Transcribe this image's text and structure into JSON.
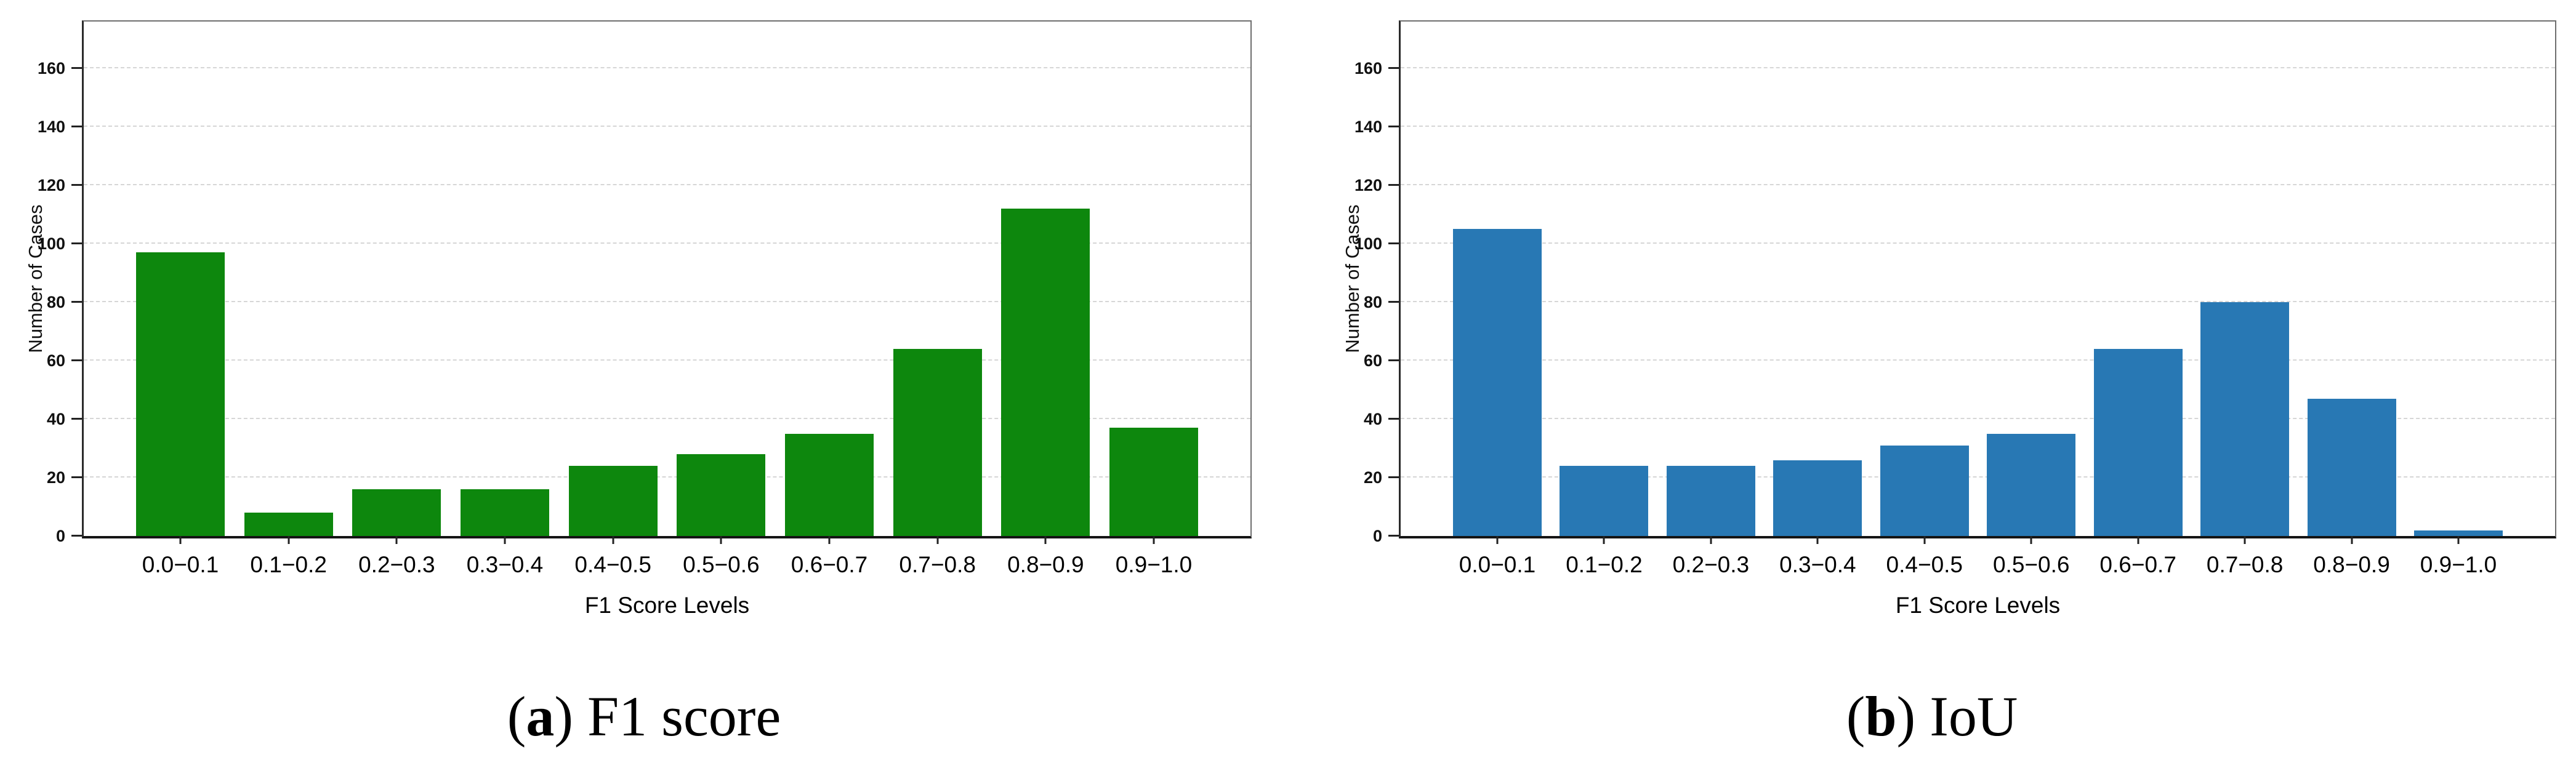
{
  "chart_data": [
    {
      "type": "bar",
      "panel": "a",
      "title": "",
      "xlabel": "F1 Score Levels",
      "ylabel": "Number of Cases",
      "categories": [
        "0.0−0.1",
        "0.1−0.2",
        "0.2−0.3",
        "0.3−0.4",
        "0.4−0.5",
        "0.5−0.6",
        "0.6−0.7",
        "0.7−0.8",
        "0.8−0.9",
        "0.9−1.0"
      ],
      "values": [
        97,
        8,
        16,
        16,
        24,
        28,
        35,
        64,
        112,
        37
      ],
      "yticks": [
        0,
        20,
        40,
        60,
        80,
        100,
        120,
        140,
        160
      ],
      "ylim": [
        0,
        176
      ],
      "grid": "dashed-horizontal",
      "legend": "none",
      "bar_color": "#0d870d",
      "caption": {
        "open": "(",
        "letter": "a",
        "close": ")",
        "text": " F1 score"
      }
    },
    {
      "type": "bar",
      "panel": "b",
      "title": "",
      "xlabel": "F1 Score Levels",
      "ylabel": "Number of Cases",
      "categories": [
        "0.0−0.1",
        "0.1−0.2",
        "0.2−0.3",
        "0.3−0.4",
        "0.4−0.5",
        "0.5−0.6",
        "0.6−0.7",
        "0.7−0.8",
        "0.8−0.9",
        "0.9−1.0"
      ],
      "values": [
        105,
        24,
        24,
        26,
        31,
        35,
        64,
        80,
        47,
        2
      ],
      "yticks": [
        0,
        20,
        40,
        60,
        80,
        100,
        120,
        140,
        160
      ],
      "ylim": [
        0,
        176
      ],
      "grid": "dashed-horizontal",
      "legend": "none",
      "bar_color": "#2878b4",
      "caption": {
        "open": "(",
        "letter": "b",
        "close": ")",
        "text": " IoU"
      }
    }
  ]
}
